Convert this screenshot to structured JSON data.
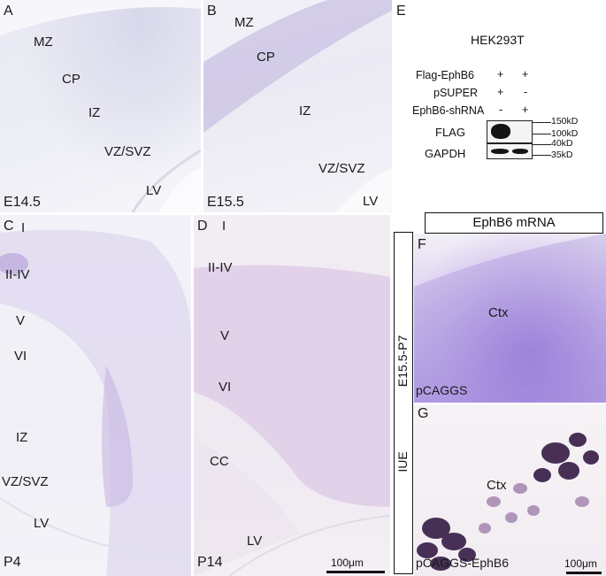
{
  "panels": {
    "A": {
      "letter": "A",
      "stage": "E14.5",
      "zones": {
        "mz": "MZ",
        "cp": "CP",
        "iz": "IZ",
        "vz": "VZ/SVZ",
        "lv": "LV"
      }
    },
    "B": {
      "letter": "B",
      "stage": "E15.5",
      "zones": {
        "mz": "MZ",
        "cp": "CP",
        "iz": "IZ",
        "vz": "VZ/SVZ",
        "lv": "LV"
      }
    },
    "C": {
      "letter": "C",
      "stage": "P4",
      "zones": {
        "i": "I",
        "ii_iv": "II-IV",
        "v": "V",
        "vi": "VI",
        "iz": "IZ",
        "vz": "VZ/SVZ",
        "lv": "LV"
      }
    },
    "D": {
      "letter": "D",
      "stage": "P14",
      "zones": {
        "i": "I",
        "ii_iv": "II-IV",
        "v": "V",
        "vi": "VI",
        "cc": "CC",
        "lv": "LV"
      },
      "scale": "100μm"
    },
    "E": {
      "letter": "E",
      "cell_line": "HEK293T",
      "rows": [
        {
          "label": "Flag-EphB6",
          "lane1": "+",
          "lane2": "+"
        },
        {
          "label": "pSUPER",
          "lane1": "+",
          "lane2": "-"
        },
        {
          "label": "EphB6-shRNA",
          "lane1": "-",
          "lane2": "+"
        }
      ],
      "blots": [
        {
          "label": "FLAG",
          "markers": [
            "150kD",
            "100kD"
          ]
        },
        {
          "label": "GAPDH",
          "markers": [
            "40kD",
            "35kD"
          ]
        }
      ]
    },
    "F": {
      "letter": "F",
      "region": "Ctx",
      "condition": "pCAGGS"
    },
    "G": {
      "letter": "G",
      "region": "Ctx",
      "condition": "pCAGGS-EphB6",
      "scale": "100μm"
    }
  },
  "header_mrna": "EphB6 mRNA",
  "side_labels": {
    "top": "E15.5-P7",
    "bottom": "IUE"
  }
}
